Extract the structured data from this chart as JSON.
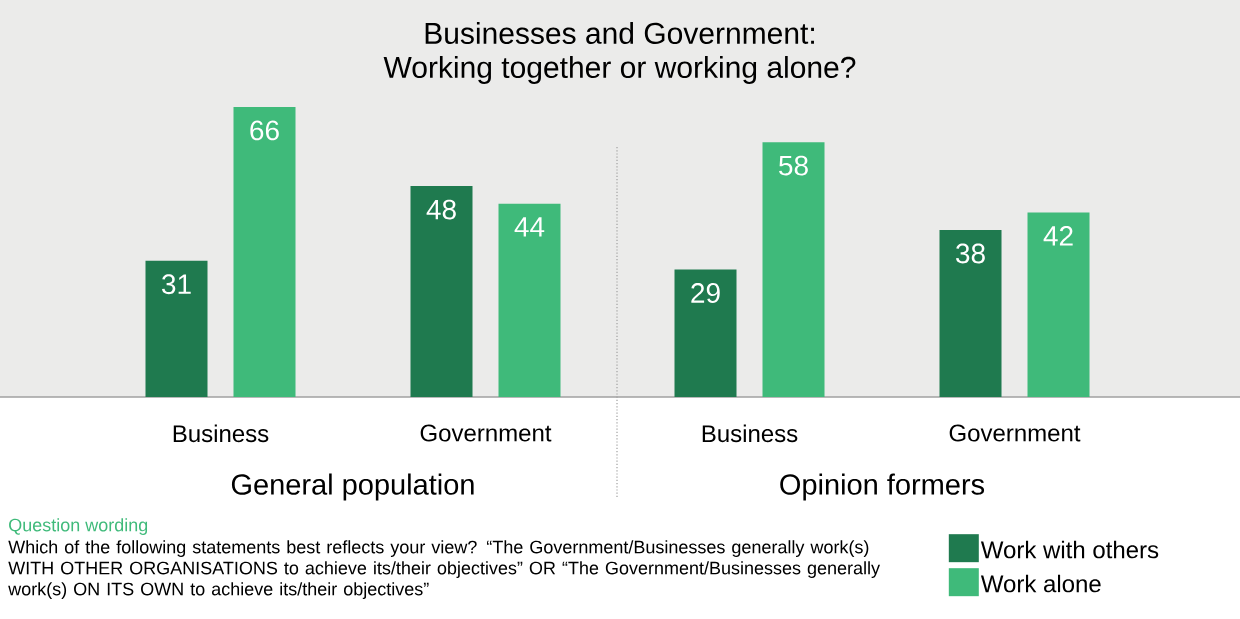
{
  "chart_data": [
    {
      "type": "bar",
      "title": "Businesses and Government:",
      "subtitle": "Working together or working alone?",
      "xlabel": "General population",
      "categories": [
        "Business",
        "Government"
      ],
      "data_labels": true,
      "series": [
        {
          "color": "#1f7a4f",
          "values": [
            31,
            48
          ]
        },
        {
          "color": "#3fba7a",
          "values": [
            66,
            44
          ]
        }
      ],
      "annotations": [
        "Question wording",
        "Which of the following statements best reflects your view? “The Government/Businesses generally work(s) WITH OTHER ORGANISATIONS to achieve its/their objectives” OR “The Government/Businesses generally work(s) ON ITS OWN to achieve its/their objectives”"
      ]
    },
    {
      "type": "bar",
      "xlabel": "Opinion formers",
      "categories": [
        "Business",
        "Government"
      ],
      "data_labels": true,
      "legend": "bottom right",
      "series": [
        {
          "name": "Work with others",
          "color": "#1f7a4f",
          "values": [
            29,
            38
          ]
        },
        {
          "name": "Work alone",
          "color": "#3fba7a",
          "values": [
            58,
            42
          ]
        }
      ]
    }
  ]
}
